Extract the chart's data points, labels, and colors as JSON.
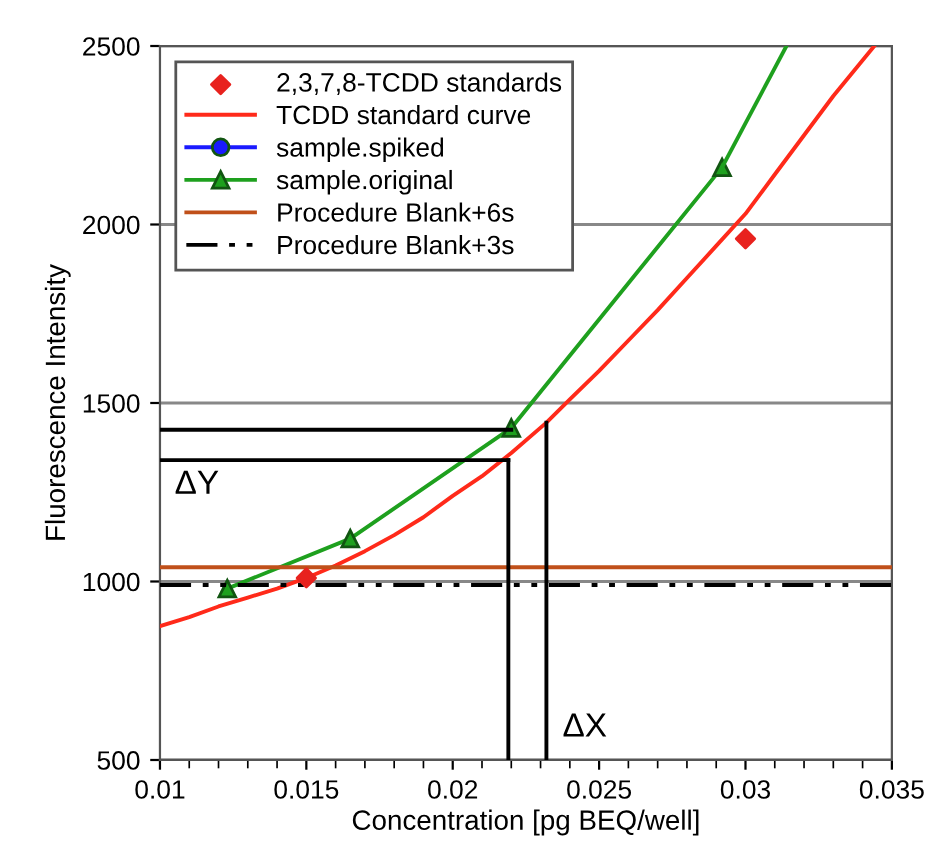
{
  "chart_data": {
    "type": "line",
    "xlabel": "Concentration [pg BEQ/well]",
    "ylabel": "Fluorescence Intensity",
    "xlim": [
      0.01,
      0.035
    ],
    "xticks": [
      0.01,
      0.015,
      0.02,
      0.025,
      0.03,
      0.035
    ],
    "ylim": [
      500,
      2500
    ],
    "yticks": [
      500,
      1000,
      1500,
      2000,
      2500
    ],
    "grid": "y",
    "legend": "top left",
    "series": [
      {
        "name": "2,3,7,8-TCDD standards",
        "type": "scatter",
        "marker": "diamond",
        "color": "#e8221e",
        "x": [
          0.015,
          0.03
        ],
        "values": [
          1010,
          1960
        ]
      },
      {
        "name": "TCDD standard curve",
        "marker": "none",
        "color": "#ff2a1a",
        "x": [
          0.01,
          0.011,
          0.012,
          0.013,
          0.014,
          0.015,
          0.016,
          0.017,
          0.018,
          0.019,
          0.02,
          0.021,
          0.022,
          0.0232,
          0.024,
          0.025,
          0.026,
          0.027,
          0.028,
          0.029,
          0.03,
          0.031,
          0.032,
          0.033,
          0.0344
        ],
        "values": [
          875,
          900,
          930,
          955,
          980,
          1010,
          1045,
          1085,
          1130,
          1180,
          1240,
          1295,
          1360,
          1445,
          1510,
          1590,
          1675,
          1760,
          1850,
          1940,
          2030,
          2140,
          2250,
          2360,
          2500
        ]
      },
      {
        "name": "sample.spiked",
        "marker": "circle",
        "color": "#1a1aff"
      },
      {
        "name": "sample.original",
        "marker": "triangle",
        "color": "#1ea01e",
        "x": [
          0.0123,
          0.0165,
          0.022,
          0.0292
        ],
        "values": [
          980,
          1120,
          1430,
          2160
        ]
      },
      {
        "name": "Procedure Blank+6s",
        "marker": "none",
        "color": "#c0501a",
        "x": [
          0.01,
          0.035
        ],
        "values": [
          1040,
          1040
        ]
      },
      {
        "name": "Procedure Blank+3s",
        "marker": "none",
        "line_style": "dashdot",
        "color": "#000000",
        "x": [
          0.01,
          0.035
        ],
        "values": [
          990,
          990
        ]
      },
      {
        "marker": "none",
        "color": "#1ea01e",
        "x": [
          0.0292,
          0.0314
        ],
        "values": [
          2160,
          2500
        ]
      },
      {
        "type": "line",
        "marker": "none",
        "color": "#000000",
        "x": [
          0.01,
          0.022
        ],
        "values": [
          1425,
          1425
        ]
      },
      {
        "type": "line",
        "marker": "none",
        "color": "#000000",
        "x": [
          0.01,
          0.0219
        ],
        "values": [
          1340,
          1340
        ]
      },
      {
        "type": "line",
        "marker": "none",
        "color": "#000000",
        "x": [
          0.0219,
          0.0219
        ],
        "values": [
          500,
          1340
        ]
      },
      {
        "type": "line",
        "marker": "none",
        "color": "#000000",
        "x": [
          0.0232,
          0.0232
        ],
        "values": [
          500,
          1445
        ]
      }
    ],
    "annotations": [
      "ΔY",
      "ΔX"
    ]
  }
}
